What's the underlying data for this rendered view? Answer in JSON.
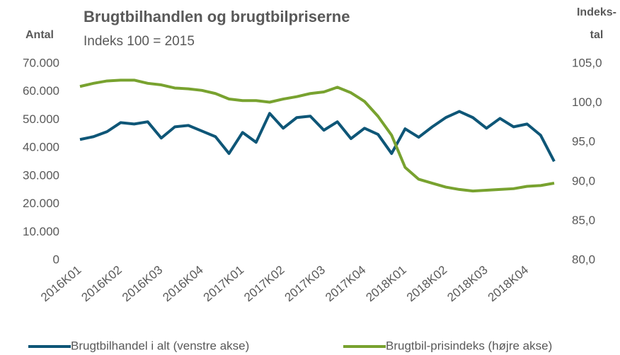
{
  "chart_data": {
    "type": "line",
    "title": "Brugtbilhandlen og brugtbilpriserne",
    "subtitle": "Indeks 100 = 2015",
    "y_label": "Antal",
    "y2_label": [
      "Indeks-",
      "tal"
    ],
    "categories": [
      "2016K01",
      null,
      null,
      "2016K02",
      null,
      null,
      "2016K03",
      null,
      null,
      "2016K04",
      null,
      null,
      "2017K01",
      null,
      null,
      "2017K02",
      null,
      null,
      "2017K03",
      null,
      null,
      "2017K04",
      null,
      null,
      "2018K01",
      null,
      null,
      "2018K02",
      null,
      null,
      "2018K03",
      null,
      null,
      "2018K04",
      null,
      null
    ],
    "series": [
      {
        "name": "Brugtbilhandel i alt (venstre akse)",
        "color": "#0e5677",
        "values": [
          43000,
          44000,
          45800,
          49000,
          48500,
          49300,
          43500,
          47500,
          48000,
          46000,
          44000,
          38000,
          45500,
          42000,
          52300,
          47000,
          50800,
          51300,
          46300,
          49300,
          43300,
          47000,
          44800,
          38000,
          46800,
          43800,
          47500,
          50800,
          53000,
          50800,
          47000,
          50500,
          47500,
          48500,
          44500,
          35200
        ]
      },
      {
        "name": "Brugtbil-prisindeks (højre akse)",
        "color": "#78a22f",
        "axis": "y2",
        "values": [
          102.1,
          102.5,
          102.8,
          102.9,
          102.9,
          102.5,
          102.3,
          101.9,
          101.8,
          101.6,
          101.2,
          100.5,
          100.3,
          100.3,
          100.1,
          100.5,
          100.8,
          101.2,
          101.4,
          102.0,
          101.3,
          100.2,
          98.3,
          95.9,
          91.8,
          90.3,
          89.8,
          89.3,
          89.0,
          88.8,
          88.9,
          89.0,
          89.1,
          89.4,
          89.5,
          89.8
        ]
      }
    ],
    "ylim": [
      0,
      70000
    ],
    "yticks": [
      0,
      {
        "value": 10000,
        "label": "10.000"
      },
      {
        "value": 20000,
        "label": "20.000"
      },
      {
        "value": 30000,
        "label": "30.000"
      },
      {
        "value": 40000,
        "label": "40.000"
      },
      {
        "value": 50000,
        "label": "50.000"
      },
      {
        "value": 60000,
        "label": "60.000"
      },
      {
        "value": 70000,
        "label": "70.000"
      }
    ],
    "y2lim": [
      80,
      105
    ],
    "y2ticks": [
      {
        "value": 80,
        "label": "80,0"
      },
      {
        "value": 85,
        "label": "85,0"
      },
      {
        "value": 90,
        "label": "90,0"
      },
      {
        "value": 95,
        "label": "95,0"
      },
      {
        "value": 100,
        "label": "100,0"
      },
      {
        "value": 105,
        "label": "105,0"
      }
    ],
    "grid": false,
    "legend": "bottom"
  }
}
